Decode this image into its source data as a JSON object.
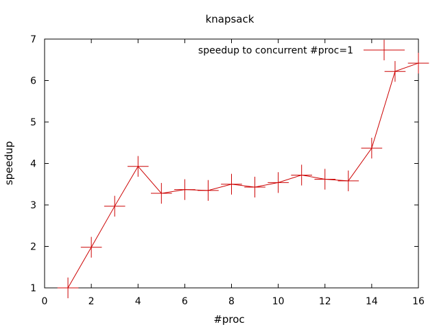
{
  "chart_data": {
    "type": "line",
    "title": "knapsack",
    "xlabel": "#proc",
    "ylabel": "speedup",
    "xlim": [
      0,
      16
    ],
    "ylim": [
      1,
      7
    ],
    "xticks": [
      0,
      2,
      4,
      6,
      8,
      10,
      12,
      14,
      16
    ],
    "yticks": [
      1,
      2,
      3,
      4,
      5,
      6,
      7
    ],
    "grid": false,
    "legend_position": "top-right",
    "series": [
      {
        "name": "speedup to concurrent #proc=1",
        "color": "#cc0000",
        "marker": "error-cross",
        "x": [
          1,
          2,
          3,
          4,
          5,
          6,
          7,
          8,
          9,
          10,
          11,
          12,
          13,
          14,
          15,
          16
        ],
        "y": [
          1.0,
          1.98,
          2.97,
          3.93,
          3.28,
          3.37,
          3.35,
          3.5,
          3.43,
          3.54,
          3.72,
          3.62,
          3.58,
          4.37,
          6.22,
          6.42
        ],
        "yerr": [
          0.25,
          0.25,
          0.25,
          0.25,
          0.25,
          0.25,
          0.25,
          0.25,
          0.25,
          0.25,
          0.25,
          0.25,
          0.25,
          0.25,
          0.25,
          0.25
        ],
        "xerr": [
          0.45,
          0.45,
          0.45,
          0.45,
          0.45,
          0.45,
          0.45,
          0.45,
          0.45,
          0.45,
          0.45,
          0.45,
          0.45,
          0.45,
          0.45,
          0.45
        ]
      }
    ]
  }
}
